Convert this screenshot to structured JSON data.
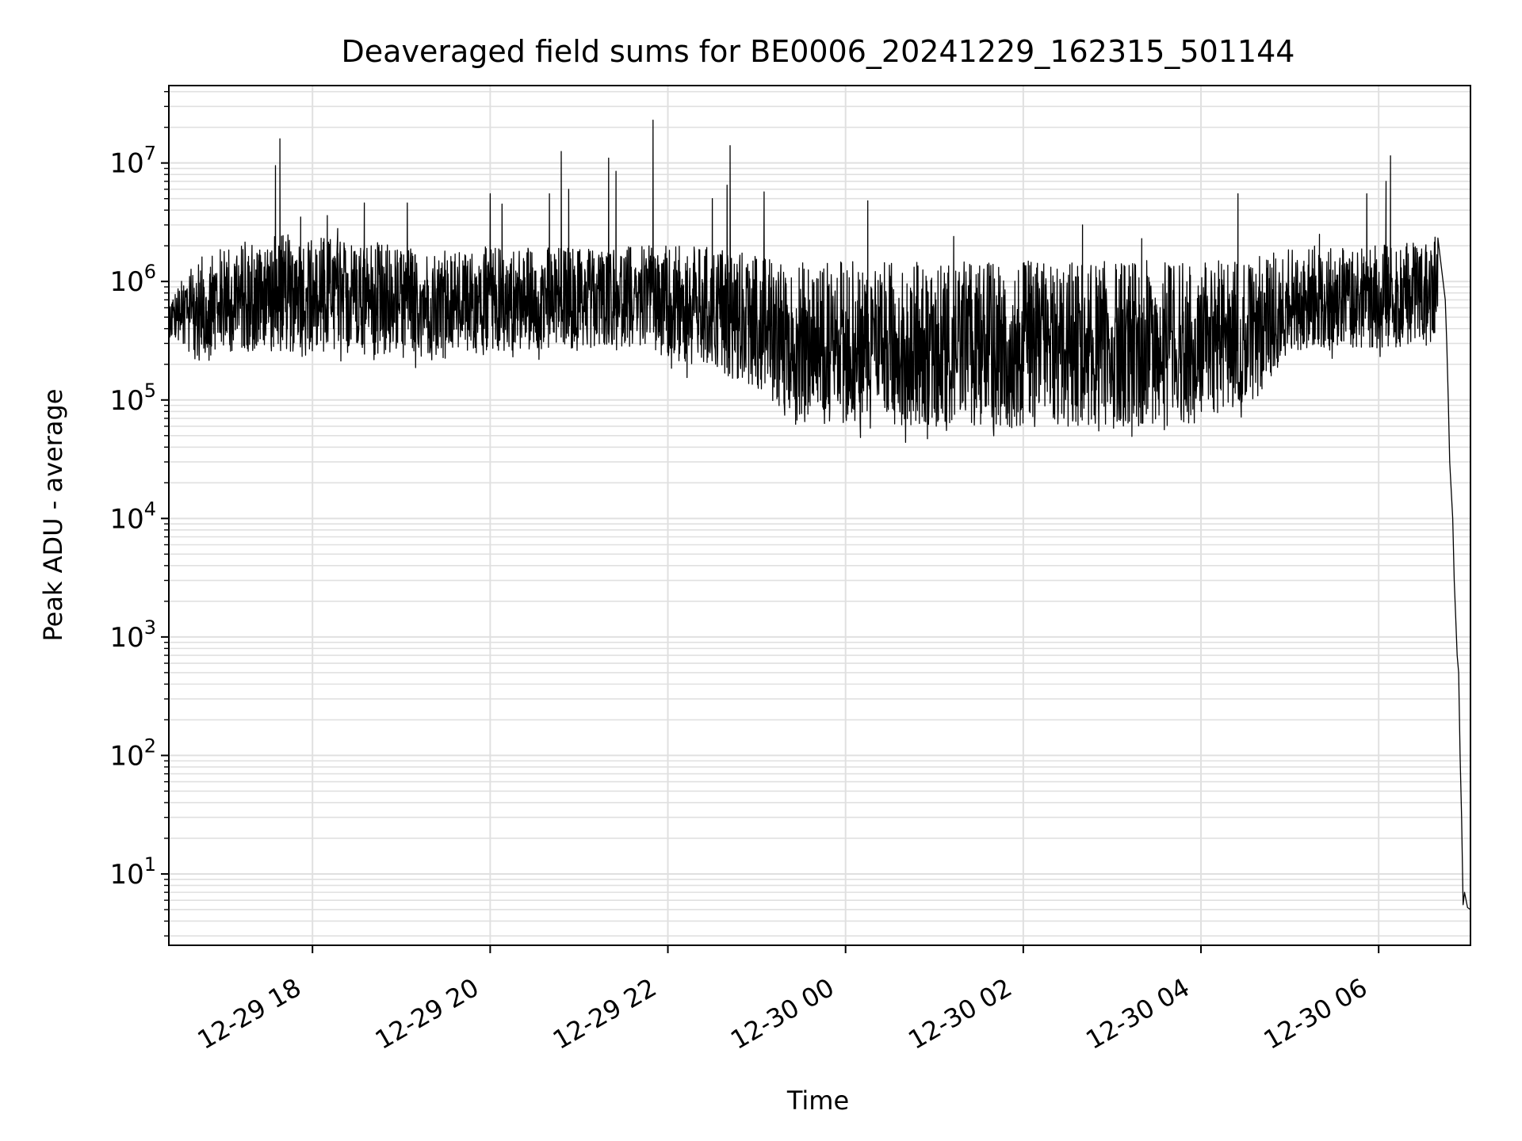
{
  "chart_data": {
    "type": "line",
    "title": "Deaveraged field sums for BE0006_20241229_162315_501144",
    "xlabel": "Time",
    "ylabel": "Peak ADU - average",
    "y_scale": "log",
    "grid": true,
    "line_color": "#000000",
    "grid_color": "#e0e0e0",
    "x_range": [
      "2024-12-29 16:23",
      "2024-12-30 07:02"
    ],
    "y_range": [
      2.5,
      45000000
    ],
    "x_ticks": [
      {
        "value": "2024-12-29 18:00",
        "label": "12-29 18"
      },
      {
        "value": "2024-12-29 20:00",
        "label": "12-29 20"
      },
      {
        "value": "2024-12-29 22:00",
        "label": "12-29 22"
      },
      {
        "value": "2024-12-30 00:00",
        "label": "12-30 00"
      },
      {
        "value": "2024-12-30 02:00",
        "label": "12-30 02"
      },
      {
        "value": "2024-12-30 04:00",
        "label": "12-30 04"
      },
      {
        "value": "2024-12-30 06:00",
        "label": "12-30 06"
      }
    ],
    "y_ticks": [
      {
        "value": 10,
        "base": "10",
        "exp": "1"
      },
      {
        "value": 100,
        "base": "10",
        "exp": "2"
      },
      {
        "value": 1000,
        "base": "10",
        "exp": "3"
      },
      {
        "value": 10000,
        "base": "10",
        "exp": "4"
      },
      {
        "value": 100000,
        "base": "10",
        "exp": "5"
      },
      {
        "value": 1000000,
        "base": "10",
        "exp": "6"
      },
      {
        "value": 10000000,
        "base": "10",
        "exp": "7"
      }
    ],
    "series": [
      {
        "envelope": [
          {
            "t": "2024-12-29 16:23",
            "low": 320000,
            "high": 700000
          },
          {
            "t": "2024-12-29 16:40",
            "low": 180000,
            "high": 1500000
          },
          {
            "t": "2024-12-29 17:00",
            "low": 200000,
            "high": 2000000
          },
          {
            "t": "2024-12-29 17:30",
            "low": 200000,
            "high": 2500000
          },
          {
            "t": "2024-12-29 18:00",
            "low": 190000,
            "high": 2500000
          },
          {
            "t": "2024-12-29 18:40",
            "low": 190000,
            "high": 2200000
          },
          {
            "t": "2024-12-29 19:00",
            "low": 170000,
            "high": 2000000
          },
          {
            "t": "2024-12-29 19:40",
            "low": 200000,
            "high": 1800000
          },
          {
            "t": "2024-12-29 20:00",
            "low": 200000,
            "high": 2000000
          },
          {
            "t": "2024-12-29 21:00",
            "low": 210000,
            "high": 2000000
          },
          {
            "t": "2024-12-29 21:40",
            "low": 230000,
            "high": 2000000
          },
          {
            "t": "2024-12-29 22:00",
            "low": 150000,
            "high": 2000000
          },
          {
            "t": "2024-12-29 22:40",
            "low": 120000,
            "high": 2000000
          },
          {
            "t": "2024-12-29 23:00",
            "low": 90000,
            "high": 1700000
          },
          {
            "t": "2024-12-29 23:20",
            "low": 50000,
            "high": 1500000
          },
          {
            "t": "2024-12-30 00:00",
            "low": 45000,
            "high": 1500000
          },
          {
            "t": "2024-12-30 01:00",
            "low": 42000,
            "high": 1500000
          },
          {
            "t": "2024-12-30 02:00",
            "low": 40000,
            "high": 1500000
          },
          {
            "t": "2024-12-30 03:00",
            "low": 40000,
            "high": 1500000
          },
          {
            "t": "2024-12-30 04:00",
            "low": 45000,
            "high": 1500000
          },
          {
            "t": "2024-12-30 04:40",
            "low": 80000,
            "high": 1700000
          },
          {
            "t": "2024-12-30 05:00",
            "low": 200000,
            "high": 2000000
          },
          {
            "t": "2024-12-30 06:00",
            "low": 220000,
            "high": 2000000
          },
          {
            "t": "2024-12-30 06:40",
            "low": 230000,
            "high": 2400000
          }
        ],
        "spikes": [
          {
            "t": "2024-12-29 17:35",
            "y": 9500000
          },
          {
            "t": "2024-12-29 17:38",
            "y": 16000000
          },
          {
            "t": "2024-12-29 17:52",
            "y": 3500000
          },
          {
            "t": "2024-12-29 18:10",
            "y": 3600000
          },
          {
            "t": "2024-12-29 18:17",
            "y": 2800000
          },
          {
            "t": "2024-12-29 18:35",
            "y": 4600000
          },
          {
            "t": "2024-12-29 19:04",
            "y": 4600000
          },
          {
            "t": "2024-12-29 20:00",
            "y": 5500000
          },
          {
            "t": "2024-12-29 20:08",
            "y": 4500000
          },
          {
            "t": "2024-12-29 20:40",
            "y": 5500000
          },
          {
            "t": "2024-12-29 20:48",
            "y": 12500000
          },
          {
            "t": "2024-12-29 20:53",
            "y": 6000000
          },
          {
            "t": "2024-12-29 21:20",
            "y": 11000000
          },
          {
            "t": "2024-12-29 21:25",
            "y": 8500000
          },
          {
            "t": "2024-12-29 21:50",
            "y": 23000000
          },
          {
            "t": "2024-12-29 22:30",
            "y": 5000000
          },
          {
            "t": "2024-12-29 22:40",
            "y": 6500000
          },
          {
            "t": "2024-12-29 22:42",
            "y": 14000000
          },
          {
            "t": "2024-12-29 23:05",
            "y": 5700000
          },
          {
            "t": "2024-12-30 00:15",
            "y": 4800000
          },
          {
            "t": "2024-12-30 01:13",
            "y": 2400000
          },
          {
            "t": "2024-12-30 02:40",
            "y": 3000000
          },
          {
            "t": "2024-12-30 03:20",
            "y": 2300000
          },
          {
            "t": "2024-12-30 04:25",
            "y": 5500000
          },
          {
            "t": "2024-12-30 05:20",
            "y": 2500000
          },
          {
            "t": "2024-12-30 05:52",
            "y": 5500000
          },
          {
            "t": "2024-12-30 06:05",
            "y": 7000000
          },
          {
            "t": "2024-12-30 06:08",
            "y": 11500000
          },
          {
            "t": "2024-12-30 06:41",
            "y": 3600000
          }
        ],
        "tail": [
          {
            "t": "2024-12-30 06:45",
            "y": 700000
          },
          {
            "t": "2024-12-30 06:46",
            "y": 300000
          },
          {
            "t": "2024-12-30 06:47",
            "y": 100000
          },
          {
            "t": "2024-12-30 06:48",
            "y": 30000
          },
          {
            "t": "2024-12-30 06:50",
            "y": 10000
          },
          {
            "t": "2024-12-30 06:51",
            "y": 3000
          },
          {
            "t": "2024-12-30 06:52",
            "y": 1500
          },
          {
            "t": "2024-12-30 06:53",
            "y": 700
          },
          {
            "t": "2024-12-30 06:54",
            "y": 500
          },
          {
            "t": "2024-12-30 06:55",
            "y": 100
          },
          {
            "t": "2024-12-30 06:56",
            "y": 30
          },
          {
            "t": "2024-12-30 06:57",
            "y": 5.5
          },
          {
            "t": "2024-12-30 06:58",
            "y": 7
          },
          {
            "t": "2024-12-30 07:00",
            "y": 5.2
          },
          {
            "t": "2024-12-30 07:02",
            "y": 5
          }
        ]
      }
    ]
  }
}
